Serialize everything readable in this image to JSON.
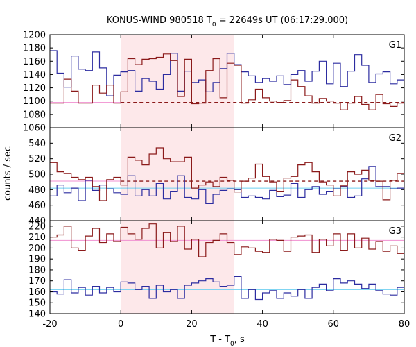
{
  "chart_data": {
    "type": "line",
    "title": {
      "prefix": "KONUS-WIND 980518 T",
      "sub": "0",
      "suffix": " = 22649s UT (06:17:29.000)"
    },
    "xlabel": {
      "prefix": "T - T",
      "sub": "0",
      "suffix": ", s"
    },
    "ylabel": "counts / sec",
    "xlim": [
      -20,
      80
    ],
    "x_ticks": [
      -20,
      0,
      20,
      40,
      60,
      80
    ],
    "highlight_interval": [
      0,
      32
    ],
    "colors": {
      "red": "#8b1a1a",
      "blue": "#2c2ca0",
      "blue_bg": "#6ecff0",
      "red_bg": "#f08fd0",
      "highlight": "#fde8ea"
    },
    "bin_edges": [
      -20,
      -18,
      -16,
      -14,
      -12,
      -10,
      -8,
      -6,
      -4,
      -2,
      0,
      2,
      4,
      6,
      8,
      10,
      12,
      14,
      16,
      18,
      20,
      22,
      24,
      26,
      28,
      30,
      32,
      34,
      36,
      38,
      40,
      42,
      44,
      46,
      48,
      50,
      52,
      54,
      56,
      58,
      60,
      62,
      64,
      66,
      68,
      70,
      72,
      74,
      76,
      78,
      80
    ],
    "panels": [
      {
        "label": "G1",
        "ylim": [
          1060,
          1200
        ],
        "y_ticks": [
          1060,
          1080,
          1100,
          1120,
          1140,
          1160,
          1180,
          1200
        ],
        "series": [
          {
            "color_key": "blue",
            "values": [
              1176,
              1142,
              1121,
              1168,
              1148,
              1146,
              1174,
              1150,
              1108,
              1139,
              1144,
              1146,
              1115,
              1134,
              1130,
              1118,
              1140,
              1172,
              1115,
              1145,
              1128,
              1132,
              1114,
              1128,
              1149,
              1172,
              1155,
              1144,
              1138,
              1128,
              1134,
              1130,
              1138,
              1125,
              1140,
              1146,
              1130,
              1145,
              1160,
              1126,
              1157,
              1122,
              1145,
              1170,
              1154,
              1128,
              1141,
              1144,
              1126,
              1132
            ]
          },
          {
            "color_key": "red",
            "values": [
              1097,
              1097,
              1133,
              1115,
              1097,
              1097,
              1124,
              1112,
              1124,
              1097,
              1114,
              1164,
              1155,
              1163,
              1164,
              1166,
              1171,
              1161,
              1107,
              1163,
              1096,
              1097,
              1146,
              1164,
              1105,
              1157,
              1154,
              1097,
              1102,
              1118,
              1105,
              1100,
              1098,
              1101,
              1132,
              1122,
              1108,
              1097,
              1104,
              1100,
              1097,
              1087,
              1097,
              1107,
              1095,
              1087,
              1110,
              1096,
              1092,
              1097
            ]
          }
        ],
        "background": [
          {
            "color_key": "blue_bg",
            "value": 1141,
            "dashed_from": null
          },
          {
            "color_key": "red_bg",
            "value": 1098,
            "dashed_from": 0
          }
        ]
      },
      {
        "label": "G2",
        "ylim": [
          440,
          560
        ],
        "y_ticks": [
          440,
          460,
          480,
          500,
          520,
          540
        ],
        "series": [
          {
            "color_key": "blue",
            "values": [
              472,
              486,
              476,
              482,
              466,
              492,
              479,
              486,
              481,
              476,
              474,
              498,
              472,
              480,
              472,
              488,
              468,
              478,
              498,
              470,
              468,
              480,
              462,
              474,
              479,
              481,
              480,
              470,
              472,
              470,
              468,
              479,
              471,
              473,
              488,
              470,
              480,
              484,
              474,
              478,
              481,
              484,
              470,
              472,
              494,
              510,
              484,
              484,
              481,
              482
            ]
          },
          {
            "color_key": "red",
            "values": [
              515,
              503,
              501,
              496,
              493,
              496,
              484,
              466,
              493,
              496,
              486,
              522,
              518,
              512,
              526,
              534,
              520,
              516,
              516,
              522,
              482,
              486,
              490,
              484,
              496,
              492,
              477,
              491,
              495,
              513,
              497,
              490,
              478,
              495,
              497,
              512,
              515,
              503,
              490,
              486,
              472,
              485,
              503,
              500,
              505,
              492,
              491,
              467,
              492,
              501
            ]
          }
        ],
        "background": [
          {
            "color_key": "blue_bg",
            "value": 482,
            "dashed_from": null
          },
          {
            "color_key": "red_bg",
            "value": 491,
            "dashed_from": 0
          }
        ]
      },
      {
        "label": "G3",
        "ylim": [
          140,
          225
        ],
        "y_ticks": [
          140,
          150,
          160,
          170,
          180,
          190,
          200,
          210,
          220
        ],
        "series": [
          {
            "color_key": "blue",
            "values": [
              160,
              158,
              171,
              159,
              164,
              157,
              165,
              159,
              164,
              160,
              169,
              168,
              162,
              165,
              154,
              166,
              160,
              162,
              154,
              166,
              168,
              170,
              172,
              169,
              165,
              166,
              174,
              154,
              162,
              153,
              159,
              161,
              154,
              159,
              156,
              162,
              154,
              164,
              167,
              161,
              172,
              168,
              170,
              167,
              163,
              167,
              161,
              158,
              157,
              164
            ]
          },
          {
            "color_key": "red",
            "values": [
              210,
              212,
              220,
              200,
              198,
              211,
              218,
              205,
              213,
              206,
              219,
              213,
              208,
              218,
              222,
              200,
              214,
              206,
              220,
              199,
              208,
              192,
              205,
              207,
              213,
              205,
              194,
              201,
              200,
              197,
              196,
              208,
              207,
              197,
              210,
              211,
              212,
              196,
              208,
              202,
              213,
              198,
              213,
              200,
              209,
              199,
              206,
              197,
              202,
              195
            ]
          }
        ],
        "background": [
          {
            "color_key": "blue_bg",
            "value": 162,
            "dashed_from": null
          },
          {
            "color_key": "red_bg",
            "value": 207,
            "dashed_from": null
          }
        ]
      }
    ]
  }
}
